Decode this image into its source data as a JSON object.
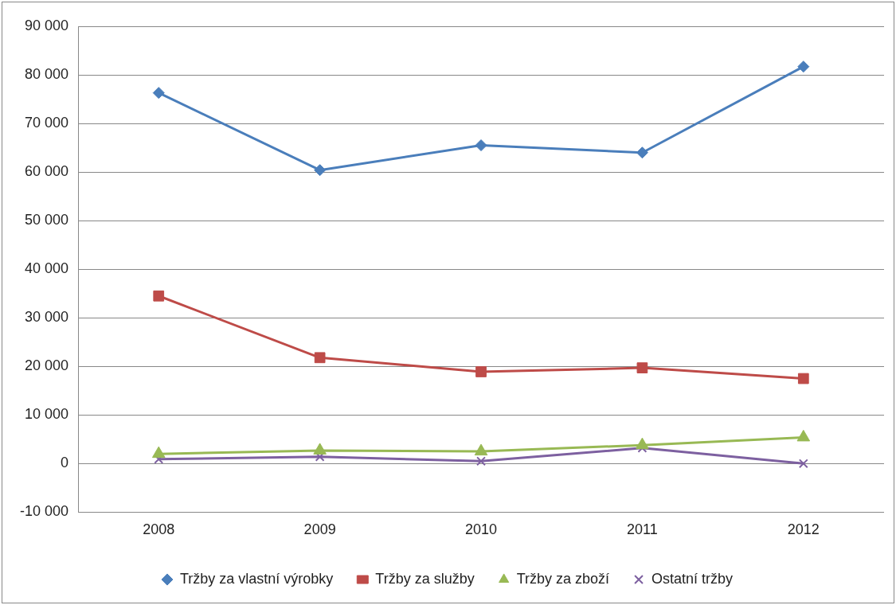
{
  "chart_data": {
    "type": "line",
    "categories": [
      "2008",
      "2009",
      "2010",
      "2011",
      "2012"
    ],
    "series": [
      {
        "name": "Tržby za vlastní výrobky",
        "color": "#4a7ebb",
        "marker": "diamond",
        "values": [
          76300,
          60400,
          65500,
          64000,
          81700
        ]
      },
      {
        "name": "Tržby za služby",
        "color": "#be4b48",
        "marker": "square",
        "values": [
          34500,
          21800,
          18900,
          19700,
          17500
        ]
      },
      {
        "name": "Tržby za zboží",
        "color": "#98b954",
        "marker": "triangle",
        "values": [
          2000,
          2700,
          2500,
          3800,
          5400
        ]
      },
      {
        "name": "Ostatní tržby",
        "color": "#7d60a0",
        "marker": "cross",
        "values": [
          900,
          1400,
          500,
          3200,
          0
        ]
      }
    ],
    "ylim": [
      -10000,
      90000
    ],
    "yticks": [
      {
        "value": -10000,
        "label": "-10 000"
      },
      {
        "value": 0,
        "label": "0"
      },
      {
        "value": 10000,
        "label": "10 000"
      },
      {
        "value": 20000,
        "label": "20 000"
      },
      {
        "value": 30000,
        "label": "30 000"
      },
      {
        "value": 40000,
        "label": "40 000"
      },
      {
        "value": 50000,
        "label": "50 000"
      },
      {
        "value": 60000,
        "label": "60 000"
      },
      {
        "value": 70000,
        "label": "70 000"
      },
      {
        "value": 80000,
        "label": "80 000"
      },
      {
        "value": 90000,
        "label": "90 000"
      }
    ],
    "grid": "y",
    "legend": "bottom",
    "line_style": "solid"
  }
}
